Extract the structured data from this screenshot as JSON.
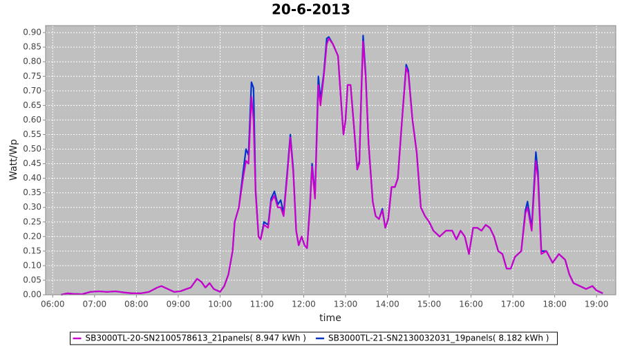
{
  "chart_data": {
    "type": "line",
    "title": "20-6-2013",
    "x_label": "time",
    "y_label": "Watt/Wp",
    "x": [
      6.2,
      6.35,
      6.5,
      6.7,
      6.9,
      7.1,
      7.3,
      7.5,
      7.7,
      7.9,
      8.1,
      8.3,
      8.5,
      8.6,
      8.75,
      8.9,
      9.05,
      9.2,
      9.3,
      9.45,
      9.55,
      9.65,
      9.75,
      9.85,
      10.0,
      10.1,
      10.2,
      10.3,
      10.35,
      10.45,
      10.55,
      10.62,
      10.68,
      10.75,
      10.8,
      10.85,
      10.92,
      10.97,
      11.05,
      11.15,
      11.22,
      11.3,
      11.38,
      11.45,
      11.52,
      11.6,
      11.68,
      11.75,
      11.82,
      11.88,
      11.95,
      12.02,
      12.08,
      12.15,
      12.2,
      12.27,
      12.35,
      12.4,
      12.48,
      12.55,
      12.6,
      12.7,
      12.82,
      12.9,
      12.95,
      13.0,
      13.05,
      13.12,
      13.2,
      13.28,
      13.33,
      13.38,
      13.42,
      13.48,
      13.55,
      13.65,
      13.72,
      13.8,
      13.88,
      13.95,
      14.02,
      14.1,
      14.18,
      14.25,
      14.35,
      14.45,
      14.5,
      14.6,
      14.7,
      14.8,
      14.9,
      15.0,
      15.1,
      15.25,
      15.4,
      15.55,
      15.65,
      15.75,
      15.85,
      15.95,
      16.05,
      16.15,
      16.25,
      16.35,
      16.45,
      16.55,
      16.65,
      16.75,
      16.85,
      16.95,
      17.05,
      17.2,
      17.3,
      17.35,
      17.45,
      17.55,
      17.6,
      17.68,
      17.8,
      17.95,
      18.1,
      18.25,
      18.35,
      18.45,
      18.6,
      18.75,
      18.9,
      19.0,
      19.15
    ],
    "series": [
      {
        "name": "SB3000TL-20-SN2100578613_21panels( 8.947 kWh )",
        "color": "#cc00cc",
        "values": [
          0.0,
          0.005,
          0.003,
          0.002,
          0.01,
          0.012,
          0.01,
          0.012,
          0.008,
          0.005,
          0.005,
          0.01,
          0.025,
          0.03,
          0.02,
          0.01,
          0.012,
          0.02,
          0.025,
          0.055,
          0.045,
          0.025,
          0.04,
          0.02,
          0.01,
          0.03,
          0.07,
          0.15,
          0.25,
          0.3,
          0.4,
          0.46,
          0.45,
          0.68,
          0.6,
          0.35,
          0.2,
          0.19,
          0.24,
          0.23,
          0.32,
          0.34,
          0.3,
          0.3,
          0.27,
          0.4,
          0.54,
          0.42,
          0.22,
          0.17,
          0.2,
          0.17,
          0.16,
          0.3,
          0.44,
          0.33,
          0.72,
          0.65,
          0.75,
          0.86,
          0.88,
          0.86,
          0.82,
          0.65,
          0.55,
          0.6,
          0.72,
          0.72,
          0.58,
          0.43,
          0.45,
          0.7,
          0.87,
          0.75,
          0.52,
          0.32,
          0.27,
          0.26,
          0.29,
          0.23,
          0.26,
          0.37,
          0.37,
          0.4,
          0.6,
          0.78,
          0.76,
          0.6,
          0.49,
          0.3,
          0.27,
          0.25,
          0.22,
          0.2,
          0.22,
          0.22,
          0.19,
          0.22,
          0.2,
          0.14,
          0.23,
          0.23,
          0.22,
          0.24,
          0.23,
          0.2,
          0.15,
          0.14,
          0.09,
          0.09,
          0.13,
          0.15,
          0.28,
          0.3,
          0.22,
          0.46,
          0.4,
          0.14,
          0.15,
          0.11,
          0.14,
          0.12,
          0.07,
          0.04,
          0.03,
          0.02,
          0.03,
          0.015,
          0.005
        ]
      },
      {
        "name": "SB3000TL-21-SN2130032031_19panels( 8.182 kWh )",
        "color": "#0033cc",
        "values": [
          0.0,
          0.005,
          0.003,
          0.002,
          0.01,
          0.012,
          0.01,
          0.012,
          0.008,
          0.005,
          0.005,
          0.01,
          0.025,
          0.03,
          0.02,
          0.01,
          0.012,
          0.02,
          0.025,
          0.055,
          0.045,
          0.025,
          0.04,
          0.02,
          0.01,
          0.03,
          0.07,
          0.15,
          0.25,
          0.3,
          0.42,
          0.5,
          0.48,
          0.73,
          0.71,
          0.36,
          0.2,
          0.19,
          0.25,
          0.24,
          0.33,
          0.355,
          0.31,
          0.325,
          0.28,
          0.41,
          0.55,
          0.43,
          0.22,
          0.17,
          0.2,
          0.17,
          0.16,
          0.31,
          0.45,
          0.34,
          0.75,
          0.67,
          0.76,
          0.88,
          0.885,
          0.86,
          0.82,
          0.65,
          0.55,
          0.6,
          0.72,
          0.72,
          0.58,
          0.43,
          0.46,
          0.71,
          0.89,
          0.76,
          0.52,
          0.32,
          0.27,
          0.26,
          0.295,
          0.23,
          0.26,
          0.37,
          0.37,
          0.4,
          0.6,
          0.79,
          0.77,
          0.6,
          0.49,
          0.3,
          0.27,
          0.25,
          0.22,
          0.2,
          0.22,
          0.22,
          0.19,
          0.22,
          0.2,
          0.14,
          0.23,
          0.23,
          0.22,
          0.24,
          0.23,
          0.2,
          0.15,
          0.14,
          0.09,
          0.09,
          0.13,
          0.15,
          0.29,
          0.32,
          0.23,
          0.49,
          0.42,
          0.15,
          0.15,
          0.11,
          0.14,
          0.12,
          0.07,
          0.04,
          0.03,
          0.02,
          0.03,
          0.015,
          0.005
        ]
      }
    ],
    "xlim": [
      5.83,
      19.46
    ],
    "ylim": [
      0,
      0.924
    ],
    "xticks": [
      {
        "value": 6,
        "label": "06:00"
      },
      {
        "value": 7,
        "label": "07:00"
      },
      {
        "value": 8,
        "label": "08:00"
      },
      {
        "value": 9,
        "label": "09:00"
      },
      {
        "value": 10,
        "label": "10:00"
      },
      {
        "value": 11,
        "label": "11:00"
      },
      {
        "value": 12,
        "label": "12:00"
      },
      {
        "value": 13,
        "label": "13:00"
      },
      {
        "value": 14,
        "label": "14:00"
      },
      {
        "value": 15,
        "label": "15:00"
      },
      {
        "value": 16,
        "label": "16:00"
      },
      {
        "value": 17,
        "label": "17:00"
      },
      {
        "value": 18,
        "label": "18:00"
      },
      {
        "value": 19,
        "label": "19:00"
      }
    ],
    "yticks": [
      {
        "value": 0,
        "label": "0.00"
      },
      0.05,
      {
        "value": 0.1,
        "label": "0.10"
      },
      0.15,
      {
        "value": 0.2,
        "label": "0.20"
      },
      0.25,
      {
        "value": 0.3,
        "label": "0.30"
      },
      0.35,
      {
        "value": 0.4,
        "label": "0.40"
      },
      0.45,
      {
        "value": 0.5,
        "label": "0.50"
      },
      0.55,
      {
        "value": 0.6,
        "label": "0.60"
      },
      0.65,
      {
        "value": 0.7,
        "label": "0.70"
      },
      0.75,
      {
        "value": 0.8,
        "label": "0.80"
      },
      0.85,
      {
        "value": 0.9,
        "label": "0.90"
      }
    ],
    "grid": true,
    "legend": "bottom"
  }
}
